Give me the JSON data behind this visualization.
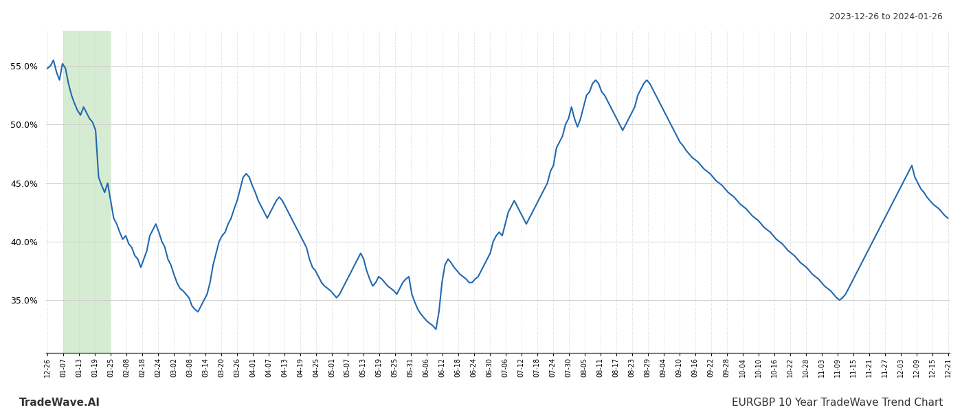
{
  "title_top_right": "2023-12-26 to 2024-01-26",
  "title_bottom_right": "EURGBP 10 Year TradeWave Trend Chart",
  "title_bottom_left": "TradeWave.AI",
  "x_labels": [
    "12-26",
    "01-07",
    "01-13",
    "01-19",
    "01-25",
    "02-08",
    "02-18",
    "02-24",
    "03-02",
    "03-08",
    "03-14",
    "03-20",
    "03-26",
    "04-01",
    "04-07",
    "04-13",
    "04-19",
    "04-25",
    "05-01",
    "05-07",
    "05-13",
    "05-19",
    "05-25",
    "05-31",
    "06-06",
    "06-12",
    "06-18",
    "06-24",
    "06-30",
    "07-06",
    "07-12",
    "07-18",
    "07-24",
    "07-30",
    "08-05",
    "08-11",
    "08-17",
    "08-23",
    "08-29",
    "09-04",
    "09-10",
    "09-16",
    "09-22",
    "09-28",
    "10-04",
    "10-10",
    "10-16",
    "10-22",
    "10-28",
    "11-03",
    "11-09",
    "11-15",
    "11-21",
    "11-27",
    "12-03",
    "12-09",
    "12-15",
    "12-21"
  ],
  "line_color": "#2068b0",
  "line_width": 1.5,
  "highlight_color": "#d6ecd2",
  "background_color": "#ffffff",
  "grid_color": "#cccccc",
  "y_ticks": [
    35.0,
    40.0,
    45.0,
    50.0,
    55.0
  ],
  "ylim": [
    30.5,
    58.0
  ],
  "highlight_xstart_label": "01-07",
  "highlight_xend_label": "01-25",
  "values": [
    54.8,
    55.0,
    55.5,
    54.5,
    53.8,
    55.2,
    54.8,
    53.5,
    52.5,
    51.8,
    51.2,
    50.8,
    51.5,
    51.0,
    50.5,
    50.2,
    49.5,
    45.5,
    44.8,
    44.2,
    45.0,
    43.5,
    42.0,
    41.5,
    40.8,
    40.2,
    40.5,
    39.8,
    39.5,
    38.8,
    38.5,
    37.8,
    38.5,
    39.2,
    40.5,
    41.0,
    41.5,
    40.8,
    40.0,
    39.5,
    38.5,
    38.0,
    37.2,
    36.5,
    36.0,
    35.8,
    35.5,
    35.2,
    34.5,
    34.2,
    34.0,
    34.5,
    35.0,
    35.5,
    36.5,
    38.0,
    39.0,
    40.0,
    40.5,
    40.8,
    41.5,
    42.0,
    42.8,
    43.5,
    44.5,
    45.5,
    45.8,
    45.5,
    44.8,
    44.2,
    43.5,
    43.0,
    42.5,
    42.0,
    42.5,
    43.0,
    43.5,
    43.8,
    43.5,
    43.0,
    42.5,
    42.0,
    41.5,
    41.0,
    40.5,
    40.0,
    39.5,
    38.5,
    37.8,
    37.5,
    37.0,
    36.5,
    36.2,
    36.0,
    35.8,
    35.5,
    35.2,
    35.5,
    36.0,
    36.5,
    37.0,
    37.5,
    38.0,
    38.5,
    39.0,
    38.5,
    37.5,
    36.8,
    36.2,
    36.5,
    37.0,
    36.8,
    36.5,
    36.2,
    36.0,
    35.8,
    35.5,
    36.0,
    36.5,
    36.8,
    37.0,
    35.5,
    34.8,
    34.2,
    33.8,
    33.5,
    33.2,
    33.0,
    32.8,
    32.5,
    34.0,
    36.5,
    38.0,
    38.5,
    38.2,
    37.8,
    37.5,
    37.2,
    37.0,
    36.8,
    36.5,
    36.5,
    36.8,
    37.0,
    37.5,
    38.0,
    38.5,
    39.0,
    40.0,
    40.5,
    40.8,
    40.5,
    41.5,
    42.5,
    43.0,
    43.5,
    43.0,
    42.5,
    42.0,
    41.5,
    42.0,
    42.5,
    43.0,
    43.5,
    44.0,
    44.5,
    45.0,
    46.0,
    46.5,
    48.0,
    48.5,
    49.0,
    50.0,
    50.5,
    51.5,
    50.5,
    49.8,
    50.5,
    51.5,
    52.5,
    52.8,
    53.5,
    53.8,
    53.5,
    52.8,
    52.5,
    52.0,
    51.5,
    51.0,
    50.5,
    50.0,
    49.5,
    50.0,
    50.5,
    51.0,
    51.5,
    52.5,
    53.0,
    53.5,
    53.8,
    53.5,
    53.0,
    52.5,
    52.0,
    51.5,
    51.0,
    50.5,
    50.0,
    49.5,
    49.0,
    48.5,
    48.2,
    47.8,
    47.5,
    47.2,
    47.0,
    46.8,
    46.5,
    46.2,
    46.0,
    45.8,
    45.5,
    45.2,
    45.0,
    44.8,
    44.5,
    44.2,
    44.0,
    43.8,
    43.5,
    43.2,
    43.0,
    42.8,
    42.5,
    42.2,
    42.0,
    41.8,
    41.5,
    41.2,
    41.0,
    40.8,
    40.5,
    40.2,
    40.0,
    39.8,
    39.5,
    39.2,
    39.0,
    38.8,
    38.5,
    38.2,
    38.0,
    37.8,
    37.5,
    37.2,
    37.0,
    36.8,
    36.5,
    36.2,
    36.0,
    35.8,
    35.5,
    35.2,
    35.0,
    35.2,
    35.5,
    36.0,
    36.5,
    37.0,
    37.5,
    38.0,
    38.5,
    39.0,
    39.5,
    40.0,
    40.5,
    41.0,
    41.5,
    42.0,
    42.5,
    43.0,
    43.5,
    44.0,
    44.5,
    45.0,
    45.5,
    46.0,
    46.5,
    45.5,
    45.0,
    44.5,
    44.2,
    43.8,
    43.5,
    43.2,
    43.0,
    42.8,
    42.5,
    42.2,
    42.0
  ]
}
